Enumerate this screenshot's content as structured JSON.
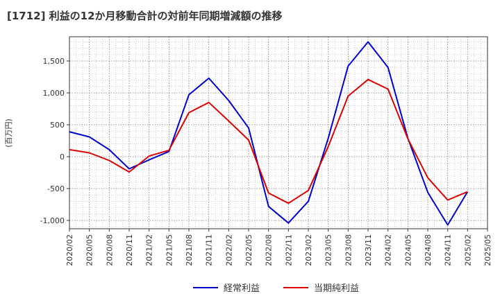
{
  "chart_data": {
    "type": "line",
    "title": "[1712]  利益の12か月移動合計の対前年同期増減額の推移",
    "ylabel": "(百万円)",
    "xlabel": "",
    "categories": [
      "2020/02",
      "2020/05",
      "2020/08",
      "2020/11",
      "2021/02",
      "2021/05",
      "2021/08",
      "2021/11",
      "2022/02",
      "2022/05",
      "2022/08",
      "2022/11",
      "2023/02",
      "2023/05",
      "2023/08",
      "2023/11",
      "2024/02",
      "2024/05",
      "2024/08",
      "2024/11",
      "2025/02",
      "2025/05"
    ],
    "ylim": [
      -1130,
      1880
    ],
    "yticks": [
      -1000,
      -500,
      0,
      500,
      1000,
      1500
    ],
    "ytick_labels": [
      "-1,000",
      "-500",
      "0",
      "500",
      "1,000",
      "1,500"
    ],
    "grid": true,
    "legend_position": "bottom",
    "series": [
      {
        "name": "経常利益",
        "color": "#0000cc",
        "values": [
          390,
          310,
          110,
          -190,
          -50,
          80,
          970,
          1230,
          880,
          450,
          -780,
          -1040,
          -700,
          290,
          1420,
          1800,
          1400,
          290,
          -560,
          -1070,
          -550,
          null
        ]
      },
      {
        "name": "当期純利益",
        "color": "#dd0000",
        "values": [
          110,
          60,
          -60,
          -240,
          10,
          100,
          690,
          850,
          560,
          260,
          -570,
          -730,
          -530,
          160,
          950,
          1210,
          1060,
          280,
          -330,
          -680,
          -550,
          null
        ]
      }
    ]
  }
}
